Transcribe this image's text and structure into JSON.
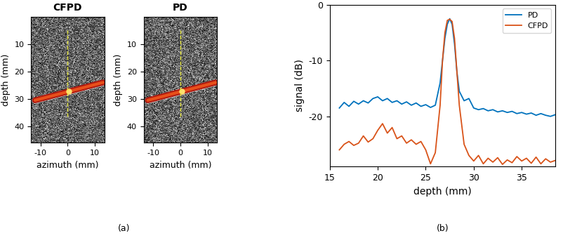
{
  "chart_data": [
    {
      "type": "image",
      "title": "CFPD",
      "xlabel": "azimuth (mm)",
      "ylabel": "depth (mm)",
      "xlim": [
        -13.5,
        13.5
      ],
      "ylim": [
        46,
        0
      ],
      "xticks": [
        -10,
        0,
        10
      ],
      "yticks": [
        10,
        20,
        30,
        40
      ],
      "vessel": {
        "x": [
          -12,
          13
        ],
        "y": [
          30.5,
          24
        ]
      },
      "cursor": {
        "x": 0,
        "y": [
          5,
          37
        ]
      }
    },
    {
      "type": "image",
      "title": "PD",
      "xlabel": "azimuth (mm)",
      "ylabel": "depth (mm)",
      "xlim": [
        -13.5,
        13.5
      ],
      "ylim": [
        46,
        0
      ],
      "xticks": [
        -10,
        0,
        10
      ],
      "yticks": [
        10,
        20,
        30,
        40
      ],
      "vessel": {
        "x": [
          -12,
          13
        ],
        "y": [
          30.5,
          24
        ]
      },
      "cursor": {
        "x": 0,
        "y": [
          5,
          37
        ]
      }
    },
    {
      "type": "line",
      "xlabel": "depth (mm)",
      "ylabel": "signal (dB)",
      "xlim": [
        15,
        38.5
      ],
      "ylim": [
        -29,
        0
      ],
      "xticks": [
        15,
        20,
        25,
        30,
        35
      ],
      "yticks": [
        -20,
        -10,
        0
      ],
      "legend": "upper right",
      "x": [
        16,
        16.5,
        17,
        17.5,
        18,
        18.5,
        19,
        19.5,
        20,
        20.5,
        21,
        21.5,
        22,
        22.5,
        23,
        23.5,
        24,
        24.5,
        25,
        25.5,
        26,
        26.5,
        26.75,
        27,
        27.25,
        27.5,
        27.75,
        28,
        28.25,
        28.5,
        29,
        29.5,
        30,
        30.5,
        31,
        31.5,
        32,
        32.5,
        33,
        33.5,
        34,
        34.5,
        35,
        35.5,
        36,
        36.5,
        37,
        37.5,
        38,
        38.5
      ],
      "series": [
        {
          "name": "PD",
          "color": "#0072BD",
          "values": [
            -18.5,
            -17.5,
            -18.2,
            -17.3,
            -17.8,
            -17.2,
            -17.6,
            -16.8,
            -16.5,
            -17.2,
            -16.8,
            -17.5,
            -17.2,
            -17.8,
            -17.4,
            -18.0,
            -17.6,
            -18.2,
            -17.9,
            -18.4,
            -18.0,
            -14,
            -10,
            -6,
            -3.5,
            -2.5,
            -3.5,
            -7,
            -12,
            -15.5,
            -17.2,
            -16.8,
            -18.5,
            -18.8,
            -18.6,
            -19,
            -18.8,
            -19.2,
            -19,
            -19.3,
            -19.1,
            -19.5,
            -19.3,
            -19.6,
            -19.4,
            -19.8,
            -19.5,
            -19.8,
            -20,
            -19.7
          ]
        },
        {
          "name": "CFPD",
          "color": "#D95319",
          "values": [
            -26,
            -25,
            -24.5,
            -25.2,
            -24.8,
            -23.5,
            -24.6,
            -24,
            -22.5,
            -21.3,
            -23,
            -22,
            -24,
            -23.5,
            -24.8,
            -24.2,
            -25,
            -24.5,
            -26,
            -28.5,
            -26.5,
            -18,
            -10,
            -5,
            -2.8,
            -2.6,
            -3,
            -6,
            -12,
            -18,
            -25,
            -27,
            -28,
            -27,
            -28.5,
            -27.5,
            -28.2,
            -27.4,
            -28.6,
            -27.8,
            -28.3,
            -27.2,
            -28,
            -27.5,
            -28.4,
            -27.3,
            -28.5,
            -27.6,
            -28.2,
            -27.9
          ]
        }
      ]
    }
  ],
  "captions": [
    "(a)",
    "(b)"
  ]
}
